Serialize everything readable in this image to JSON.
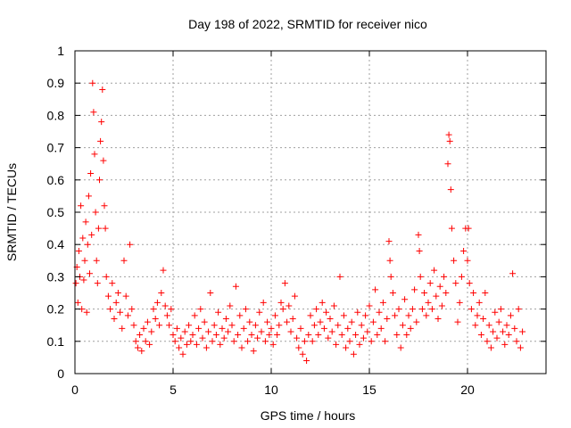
{
  "chart_data": {
    "type": "scatter",
    "title": "Day 198 of 2022, SRMTID for receiver nico",
    "xlabel": "GPS time / hours",
    "ylabel": "SRMTID / TECUs",
    "xlim": [
      0,
      24
    ],
    "ylim": [
      0,
      1
    ],
    "x_ticks": [
      {
        "value": 0,
        "label": "0"
      },
      {
        "value": 5,
        "label": "5"
      },
      {
        "value": 10,
        "label": "10"
      },
      {
        "value": 15,
        "label": "15"
      },
      {
        "value": 20,
        "label": "20"
      }
    ],
    "y_ticks": [
      {
        "value": 0,
        "label": "0"
      },
      {
        "value": 0.1,
        "label": "0.1"
      },
      {
        "value": 0.2,
        "label": "0.2"
      },
      {
        "value": 0.3,
        "label": "0.3"
      },
      {
        "value": 0.4,
        "label": "0.4"
      },
      {
        "value": 0.5,
        "label": "0.5"
      },
      {
        "value": 0.6,
        "label": "0.6"
      },
      {
        "value": 0.7,
        "label": "0.7"
      },
      {
        "value": 0.8,
        "label": "0.8"
      },
      {
        "value": 0.9,
        "label": "0.9"
      },
      {
        "value": 1,
        "label": "1"
      }
    ],
    "grid": true,
    "marker": "+",
    "series_color": "#ff0000",
    "series": [
      {
        "name": "SRMTID",
        "points": [
          [
            0.05,
            0.28
          ],
          [
            0.1,
            0.33
          ],
          [
            0.15,
            0.22
          ],
          [
            0.2,
            0.38
          ],
          [
            0.25,
            0.3
          ],
          [
            0.3,
            0.52
          ],
          [
            0.35,
            0.2
          ],
          [
            0.4,
            0.42
          ],
          [
            0.45,
            0.29
          ],
          [
            0.5,
            0.35
          ],
          [
            0.55,
            0.47
          ],
          [
            0.6,
            0.19
          ],
          [
            0.65,
            0.4
          ],
          [
            0.7,
            0.55
          ],
          [
            0.75,
            0.31
          ],
          [
            0.8,
            0.62
          ],
          [
            0.85,
            0.43
          ],
          [
            0.9,
            0.9
          ],
          [
            0.95,
            0.81
          ],
          [
            1.0,
            0.68
          ],
          [
            1.05,
            0.5
          ],
          [
            1.1,
            0.35
          ],
          [
            1.15,
            0.28
          ],
          [
            1.2,
            0.45
          ],
          [
            1.25,
            0.6
          ],
          [
            1.3,
            0.72
          ],
          [
            1.35,
            0.78
          ],
          [
            1.4,
            0.88
          ],
          [
            1.45,
            0.66
          ],
          [
            1.5,
            0.52
          ],
          [
            1.55,
            0.45
          ],
          [
            1.6,
            0.3
          ],
          [
            1.7,
            0.24
          ],
          [
            1.8,
            0.2
          ],
          [
            1.9,
            0.28
          ],
          [
            2.0,
            0.17
          ],
          [
            2.1,
            0.22
          ],
          [
            2.2,
            0.25
          ],
          [
            2.3,
            0.19
          ],
          [
            2.4,
            0.14
          ],
          [
            2.5,
            0.35
          ],
          [
            2.6,
            0.24
          ],
          [
            2.7,
            0.18
          ],
          [
            2.8,
            0.4
          ],
          [
            2.9,
            0.2
          ],
          [
            3.0,
            0.15
          ],
          [
            3.1,
            0.1
          ],
          [
            3.2,
            0.08
          ],
          [
            3.3,
            0.12
          ],
          [
            3.4,
            0.07
          ],
          [
            3.5,
            0.14
          ],
          [
            3.6,
            0.1
          ],
          [
            3.7,
            0.16
          ],
          [
            3.8,
            0.09
          ],
          [
            3.9,
            0.13
          ],
          [
            4.0,
            0.2
          ],
          [
            4.1,
            0.17
          ],
          [
            4.2,
            0.22
          ],
          [
            4.3,
            0.15
          ],
          [
            4.4,
            0.25
          ],
          [
            4.5,
            0.32
          ],
          [
            4.6,
            0.21
          ],
          [
            4.7,
            0.18
          ],
          [
            4.8,
            0.15
          ],
          [
            4.9,
            0.2
          ],
          [
            5.0,
            0.12
          ],
          [
            5.1,
            0.1
          ],
          [
            5.2,
            0.14
          ],
          [
            5.3,
            0.08
          ],
          [
            5.4,
            0.11
          ],
          [
            5.5,
            0.06
          ],
          [
            5.6,
            0.13
          ],
          [
            5.7,
            0.09
          ],
          [
            5.8,
            0.15
          ],
          [
            5.9,
            0.1
          ],
          [
            6.0,
            0.12
          ],
          [
            6.1,
            0.18
          ],
          [
            6.2,
            0.09
          ],
          [
            6.3,
            0.14
          ],
          [
            6.4,
            0.2
          ],
          [
            6.5,
            0.11
          ],
          [
            6.6,
            0.16
          ],
          [
            6.7,
            0.08
          ],
          [
            6.8,
            0.13
          ],
          [
            6.9,
            0.25
          ],
          [
            7.0,
            0.1
          ],
          [
            7.1,
            0.15
          ],
          [
            7.2,
            0.12
          ],
          [
            7.3,
            0.19
          ],
          [
            7.4,
            0.09
          ],
          [
            7.5,
            0.14
          ],
          [
            7.6,
            0.11
          ],
          [
            7.7,
            0.17
          ],
          [
            7.8,
            0.13
          ],
          [
            7.9,
            0.21
          ],
          [
            8.0,
            0.15
          ],
          [
            8.1,
            0.1
          ],
          [
            8.2,
            0.27
          ],
          [
            8.3,
            0.12
          ],
          [
            8.4,
            0.18
          ],
          [
            8.5,
            0.08
          ],
          [
            8.6,
            0.14
          ],
          [
            8.7,
            0.2
          ],
          [
            8.8,
            0.1
          ],
          [
            8.9,
            0.16
          ],
          [
            9.0,
            0.12
          ],
          [
            9.1,
            0.07
          ],
          [
            9.2,
            0.15
          ],
          [
            9.3,
            0.11
          ],
          [
            9.4,
            0.19
          ],
          [
            9.5,
            0.13
          ],
          [
            9.6,
            0.22
          ],
          [
            9.7,
            0.1
          ],
          [
            9.8,
            0.16
          ],
          [
            9.9,
            0.12
          ],
          [
            10.0,
            0.14
          ],
          [
            10.1,
            0.09
          ],
          [
            10.2,
            0.18
          ],
          [
            10.3,
            0.12
          ],
          [
            10.4,
            0.15
          ],
          [
            10.5,
            0.22
          ],
          [
            10.6,
            0.2
          ],
          [
            10.7,
            0.28
          ],
          [
            10.8,
            0.16
          ],
          [
            10.9,
            0.21
          ],
          [
            11.0,
            0.13
          ],
          [
            11.1,
            0.17
          ],
          [
            11.2,
            0.24
          ],
          [
            11.3,
            0.11
          ],
          [
            11.4,
            0.08
          ],
          [
            11.5,
            0.14
          ],
          [
            11.6,
            0.06
          ],
          [
            11.7,
            0.1
          ],
          [
            11.8,
            0.04
          ],
          [
            11.9,
            0.12
          ],
          [
            12.0,
            0.18
          ],
          [
            12.1,
            0.1
          ],
          [
            12.2,
            0.15
          ],
          [
            12.3,
            0.2
          ],
          [
            12.4,
            0.12
          ],
          [
            12.5,
            0.16
          ],
          [
            12.6,
            0.22
          ],
          [
            12.7,
            0.14
          ],
          [
            12.8,
            0.19
          ],
          [
            12.9,
            0.11
          ],
          [
            13.0,
            0.17
          ],
          [
            13.1,
            0.13
          ],
          [
            13.2,
            0.21
          ],
          [
            13.3,
            0.09
          ],
          [
            13.4,
            0.15
          ],
          [
            13.5,
            0.3
          ],
          [
            13.6,
            0.12
          ],
          [
            13.7,
            0.18
          ],
          [
            13.8,
            0.08
          ],
          [
            13.9,
            0.14
          ],
          [
            14.0,
            0.1
          ],
          [
            14.1,
            0.16
          ],
          [
            14.2,
            0.06
          ],
          [
            14.3,
            0.12
          ],
          [
            14.4,
            0.19
          ],
          [
            14.5,
            0.09
          ],
          [
            14.6,
            0.15
          ],
          [
            14.7,
            0.11
          ],
          [
            14.8,
            0.18
          ],
          [
            14.9,
            0.13
          ],
          [
            15.0,
            0.21
          ],
          [
            15.1,
            0.1
          ],
          [
            15.2,
            0.16
          ],
          [
            15.3,
            0.26
          ],
          [
            15.4,
            0.12
          ],
          [
            15.5,
            0.19
          ],
          [
            15.6,
            0.14
          ],
          [
            15.7,
            0.22
          ],
          [
            15.8,
            0.1
          ],
          [
            15.9,
            0.17
          ],
          [
            16.0,
            0.41
          ],
          [
            16.05,
            0.35
          ],
          [
            16.1,
            0.3
          ],
          [
            16.2,
            0.25
          ],
          [
            16.3,
            0.18
          ],
          [
            16.4,
            0.12
          ],
          [
            16.5,
            0.2
          ],
          [
            16.6,
            0.08
          ],
          [
            16.7,
            0.15
          ],
          [
            16.8,
            0.23
          ],
          [
            16.9,
            0.12
          ],
          [
            17.0,
            0.18
          ],
          [
            17.1,
            0.14
          ],
          [
            17.2,
            0.2
          ],
          [
            17.3,
            0.26
          ],
          [
            17.4,
            0.16
          ],
          [
            17.5,
            0.43
          ],
          [
            17.55,
            0.38
          ],
          [
            17.6,
            0.3
          ],
          [
            17.7,
            0.2
          ],
          [
            17.8,
            0.25
          ],
          [
            17.9,
            0.18
          ],
          [
            18.0,
            0.22
          ],
          [
            18.1,
            0.28
          ],
          [
            18.2,
            0.2
          ],
          [
            18.3,
            0.32
          ],
          [
            18.4,
            0.24
          ],
          [
            18.5,
            0.17
          ],
          [
            18.6,
            0.27
          ],
          [
            18.7,
            0.21
          ],
          [
            18.8,
            0.3
          ],
          [
            18.9,
            0.25
          ],
          [
            19.0,
            0.65
          ],
          [
            19.05,
            0.74
          ],
          [
            19.1,
            0.72
          ],
          [
            19.15,
            0.57
          ],
          [
            19.2,
            0.45
          ],
          [
            19.3,
            0.35
          ],
          [
            19.4,
            0.28
          ],
          [
            19.5,
            0.16
          ],
          [
            19.6,
            0.22
          ],
          [
            19.7,
            0.3
          ],
          [
            19.8,
            0.38
          ],
          [
            19.9,
            0.45
          ],
          [
            20.0,
            0.35
          ],
          [
            20.05,
            0.45
          ],
          [
            20.1,
            0.28
          ],
          [
            20.2,
            0.2
          ],
          [
            20.3,
            0.25
          ],
          [
            20.4,
            0.15
          ],
          [
            20.5,
            0.18
          ],
          [
            20.6,
            0.22
          ],
          [
            20.7,
            0.12
          ],
          [
            20.8,
            0.17
          ],
          [
            20.9,
            0.25
          ],
          [
            21.0,
            0.1
          ],
          [
            21.1,
            0.15
          ],
          [
            21.2,
            0.08
          ],
          [
            21.3,
            0.13
          ],
          [
            21.4,
            0.19
          ],
          [
            21.5,
            0.11
          ],
          [
            21.6,
            0.16
          ],
          [
            21.7,
            0.2
          ],
          [
            21.8,
            0.13
          ],
          [
            21.9,
            0.09
          ],
          [
            22.0,
            0.15
          ],
          [
            22.1,
            0.12
          ],
          [
            22.2,
            0.18
          ],
          [
            22.3,
            0.31
          ],
          [
            22.4,
            0.14
          ],
          [
            22.5,
            0.1
          ],
          [
            22.6,
            0.2
          ],
          [
            22.7,
            0.08
          ],
          [
            22.8,
            0.13
          ]
        ]
      }
    ]
  }
}
